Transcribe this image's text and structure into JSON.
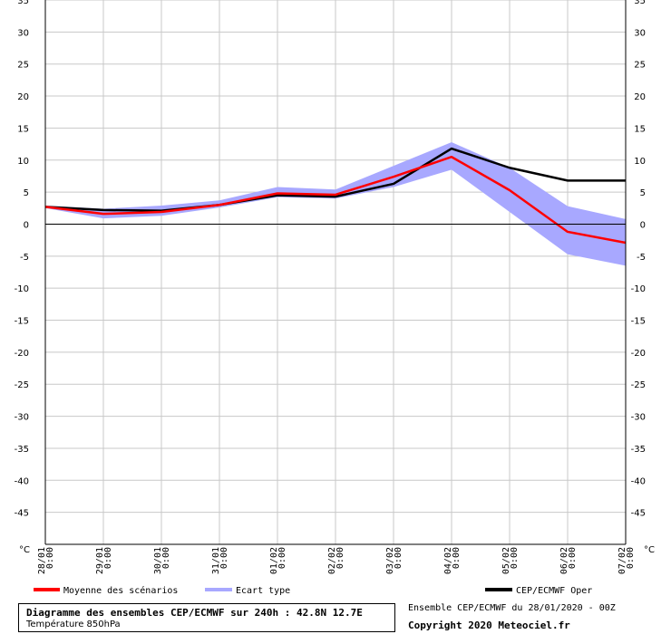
{
  "chart_data": {
    "type": "line",
    "ylim": [
      -50,
      35
    ],
    "yticks": [
      35,
      30,
      25,
      20,
      15,
      10,
      5,
      0,
      -5,
      -10,
      -15,
      -20,
      -25,
      -30,
      -35,
      -40,
      -45
    ],
    "unit_label": "°C",
    "categories": [
      "28/01 0:00",
      "29/01 0:00",
      "30/01 0:00",
      "31/01 0:00",
      "01/02 0:00",
      "02/02 0:00",
      "03/02 0:00",
      "04/02 0:00",
      "05/02 0:00",
      "06/02 0:00",
      "07/02 0:00"
    ],
    "series": [
      {
        "name": "Moyenne des scénarios",
        "color": "#ff0000",
        "values": [
          2.7,
          1.6,
          1.9,
          3.0,
          4.8,
          4.6,
          7.4,
          10.5,
          5.3,
          -1.2,
          -2.9
        ]
      },
      {
        "name": "CEP/ECMWF Oper",
        "color": "#000000",
        "values": [
          2.7,
          2.2,
          2.1,
          3.0,
          4.5,
          4.3,
          6.3,
          11.8,
          8.8,
          6.8,
          6.8
        ]
      }
    ],
    "band": {
      "name": "Ecart type",
      "color": "#a8a8ff",
      "upper": [
        2.9,
        2.4,
        2.9,
        3.7,
        5.8,
        5.4,
        9.1,
        12.8,
        8.8,
        2.8,
        0.8
      ],
      "lower": [
        2.5,
        0.9,
        1.3,
        2.6,
        4.2,
        4.0,
        5.8,
        8.5,
        1.9,
        -4.7,
        -6.5
      ]
    },
    "zero_line": true,
    "grid": true,
    "legend_position": "bottom"
  },
  "footer": {
    "title": "Diagramme des ensembles CEP/ECMWF sur 240h : 42.8N 12.7E",
    "subtitle": "Température 850hPa",
    "run_info": "Ensemble CEP/ECMWF du 28/01/2020 - 00Z",
    "copyright": "Copyright 2020 Meteociel.fr"
  }
}
